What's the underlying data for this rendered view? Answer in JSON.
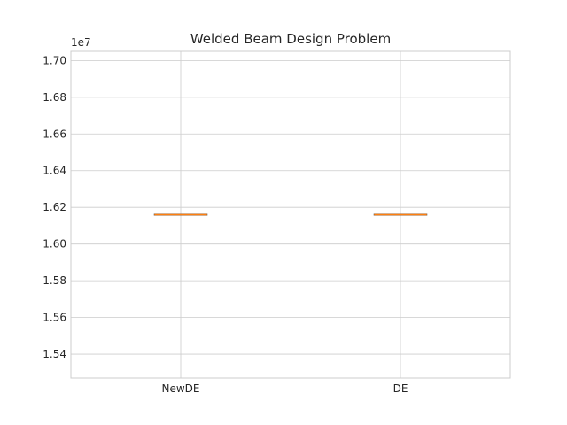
{
  "chart_data": {
    "type": "box",
    "title": "Welded Beam Design Problem",
    "xlabel": "",
    "ylabel": "",
    "y_offset_label": "1e7",
    "y_scale_factor": 10000000,
    "categories": [
      "NewDE",
      "DE"
    ],
    "boxes": [
      {
        "name": "NewDE",
        "min": 16160000,
        "q1": 16160000,
        "median": 16160000,
        "q3": 16160000,
        "max": 16160000
      },
      {
        "name": "DE",
        "min": 16160000,
        "q1": 16160000,
        "median": 16160000,
        "q3": 16160000,
        "max": 16160000
      }
    ],
    "ylim": [
      1.527,
      1.705
    ],
    "yticks": [
      1.54,
      1.56,
      1.58,
      1.6,
      1.62,
      1.64,
      1.66,
      1.68,
      1.7
    ],
    "ytick_labels": [
      "1.54",
      "1.56",
      "1.58",
      "1.60",
      "1.62",
      "1.64",
      "1.66",
      "1.68",
      "1.70"
    ],
    "grid": true,
    "colors": {
      "median": "#ff7f0e",
      "box": "#4d4d4d",
      "grid": "#cccccc",
      "axes_edge": "#cccccc"
    }
  }
}
